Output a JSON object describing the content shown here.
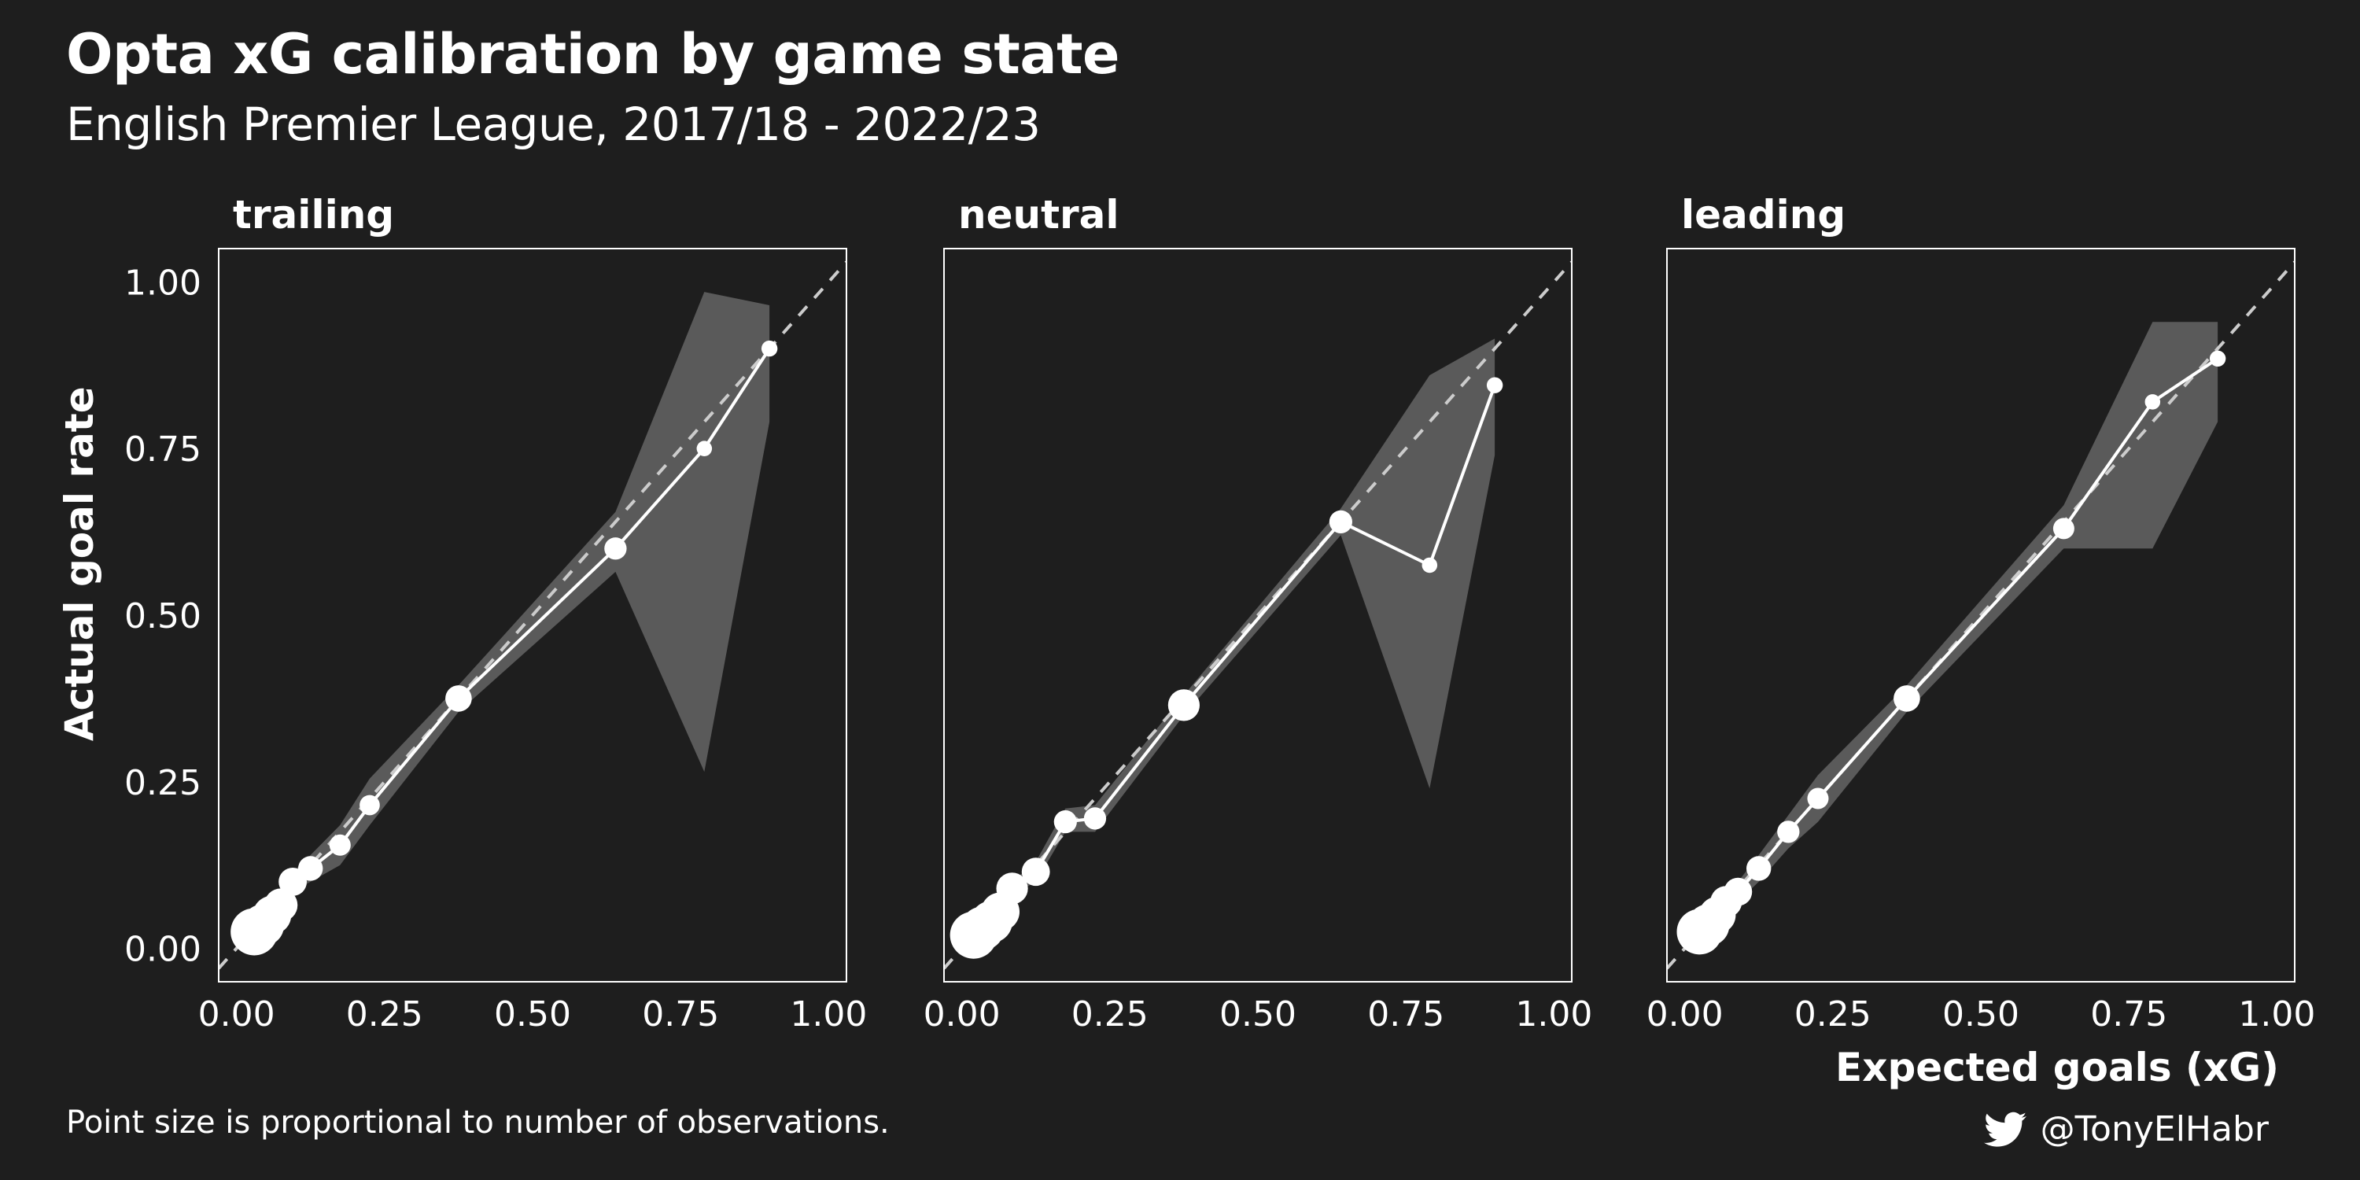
{
  "title": "Opta xG calibration by game state",
  "subtitle": "English Premier League, 2017/18 - 2022/23",
  "caption": "Point size is proportional to number of observations.",
  "credit": {
    "handle": "@TonyElHabr",
    "icon": "twitter-bird-icon"
  },
  "colors": {
    "background": "#1e1e1e",
    "ribbon": "#5a5a5a",
    "line": "#ffffff",
    "reference": "#cccccc"
  },
  "chart_data": {
    "type": "line",
    "xlabel": "Expected goals (xG)",
    "ylabel": "Actual goal rate",
    "xlim": [
      -0.03,
      1.03
    ],
    "ylim": [
      -0.05,
      1.05
    ],
    "x_ticks": [
      "0.00",
      "0.25",
      "0.50",
      "0.75",
      "1.00"
    ],
    "y_ticks": [
      "0.00",
      "0.25",
      "0.50",
      "0.75",
      "1.00"
    ],
    "x_tick_values": [
      0,
      0.25,
      0.5,
      0.75,
      1.0
    ],
    "y_tick_values": [
      0,
      0.25,
      0.5,
      0.75,
      1.0
    ],
    "reference_line": "y = x",
    "facets": [
      {
        "label": "trailing",
        "points": [
          {
            "x": 0.03,
            "y": 0.025,
            "n": 1.0
          },
          {
            "x": 0.045,
            "y": 0.035,
            "n": 0.85
          },
          {
            "x": 0.06,
            "y": 0.05,
            "n": 0.75
          },
          {
            "x": 0.075,
            "y": 0.065,
            "n": 0.6
          },
          {
            "x": 0.095,
            "y": 0.1,
            "n": 0.45
          },
          {
            "x": 0.125,
            "y": 0.12,
            "n": 0.35
          },
          {
            "x": 0.175,
            "y": 0.155,
            "n": 0.25
          },
          {
            "x": 0.225,
            "y": 0.215,
            "n": 0.22
          },
          {
            "x": 0.375,
            "y": 0.375,
            "n": 0.4
          },
          {
            "x": 0.64,
            "y": 0.6,
            "n": 0.28
          },
          {
            "x": 0.79,
            "y": 0.75,
            "n": 0.08
          },
          {
            "x": 0.9,
            "y": 0.9,
            "n": 0.1
          }
        ],
        "ribbon_upper": [
          0.04,
          0.05,
          0.065,
          0.08,
          0.115,
          0.14,
          0.185,
          0.255,
          0.395,
          0.655,
          0.985,
          0.965
        ],
        "ribbon_lower": [
          0.01,
          0.02,
          0.035,
          0.05,
          0.085,
          0.1,
          0.125,
          0.185,
          0.355,
          0.565,
          0.265,
          0.79
        ]
      },
      {
        "label": "neutral",
        "points": [
          {
            "x": 0.02,
            "y": 0.02,
            "n": 1.0
          },
          {
            "x": 0.035,
            "y": 0.03,
            "n": 0.9
          },
          {
            "x": 0.05,
            "y": 0.04,
            "n": 0.85
          },
          {
            "x": 0.065,
            "y": 0.055,
            "n": 0.75
          },
          {
            "x": 0.085,
            "y": 0.09,
            "n": 0.55
          },
          {
            "x": 0.125,
            "y": 0.115,
            "n": 0.45
          },
          {
            "x": 0.175,
            "y": 0.19,
            "n": 0.3
          },
          {
            "x": 0.225,
            "y": 0.195,
            "n": 0.28
          },
          {
            "x": 0.375,
            "y": 0.365,
            "n": 0.55
          },
          {
            "x": 0.64,
            "y": 0.64,
            "n": 0.3
          },
          {
            "x": 0.79,
            "y": 0.575,
            "n": 0.08
          },
          {
            "x": 0.9,
            "y": 0.845,
            "n": 0.1
          }
        ],
        "ribbon_upper": [
          0.03,
          0.04,
          0.05,
          0.065,
          0.1,
          0.13,
          0.21,
          0.215,
          0.38,
          0.66,
          0.86,
          0.915
        ],
        "ribbon_lower": [
          0.01,
          0.02,
          0.03,
          0.045,
          0.08,
          0.1,
          0.175,
          0.175,
          0.35,
          0.62,
          0.24,
          0.74
        ]
      },
      {
        "label": "leading",
        "points": [
          {
            "x": 0.025,
            "y": 0.025,
            "n": 0.95
          },
          {
            "x": 0.04,
            "y": 0.035,
            "n": 0.85
          },
          {
            "x": 0.055,
            "y": 0.05,
            "n": 0.7
          },
          {
            "x": 0.07,
            "y": 0.07,
            "n": 0.55
          },
          {
            "x": 0.09,
            "y": 0.085,
            "n": 0.45
          },
          {
            "x": 0.125,
            "y": 0.12,
            "n": 0.35
          },
          {
            "x": 0.175,
            "y": 0.175,
            "n": 0.28
          },
          {
            "x": 0.225,
            "y": 0.225,
            "n": 0.25
          },
          {
            "x": 0.375,
            "y": 0.375,
            "n": 0.4
          },
          {
            "x": 0.64,
            "y": 0.63,
            "n": 0.25
          },
          {
            "x": 0.79,
            "y": 0.82,
            "n": 0.08
          },
          {
            "x": 0.9,
            "y": 0.885,
            "n": 0.1
          }
        ],
        "ribbon_upper": [
          0.035,
          0.045,
          0.06,
          0.08,
          0.1,
          0.14,
          0.2,
          0.26,
          0.395,
          0.665,
          0.94,
          0.94
        ],
        "ribbon_lower": [
          0.015,
          0.025,
          0.04,
          0.06,
          0.07,
          0.1,
          0.15,
          0.19,
          0.355,
          0.6,
          0.6,
          0.79
        ]
      }
    ]
  }
}
